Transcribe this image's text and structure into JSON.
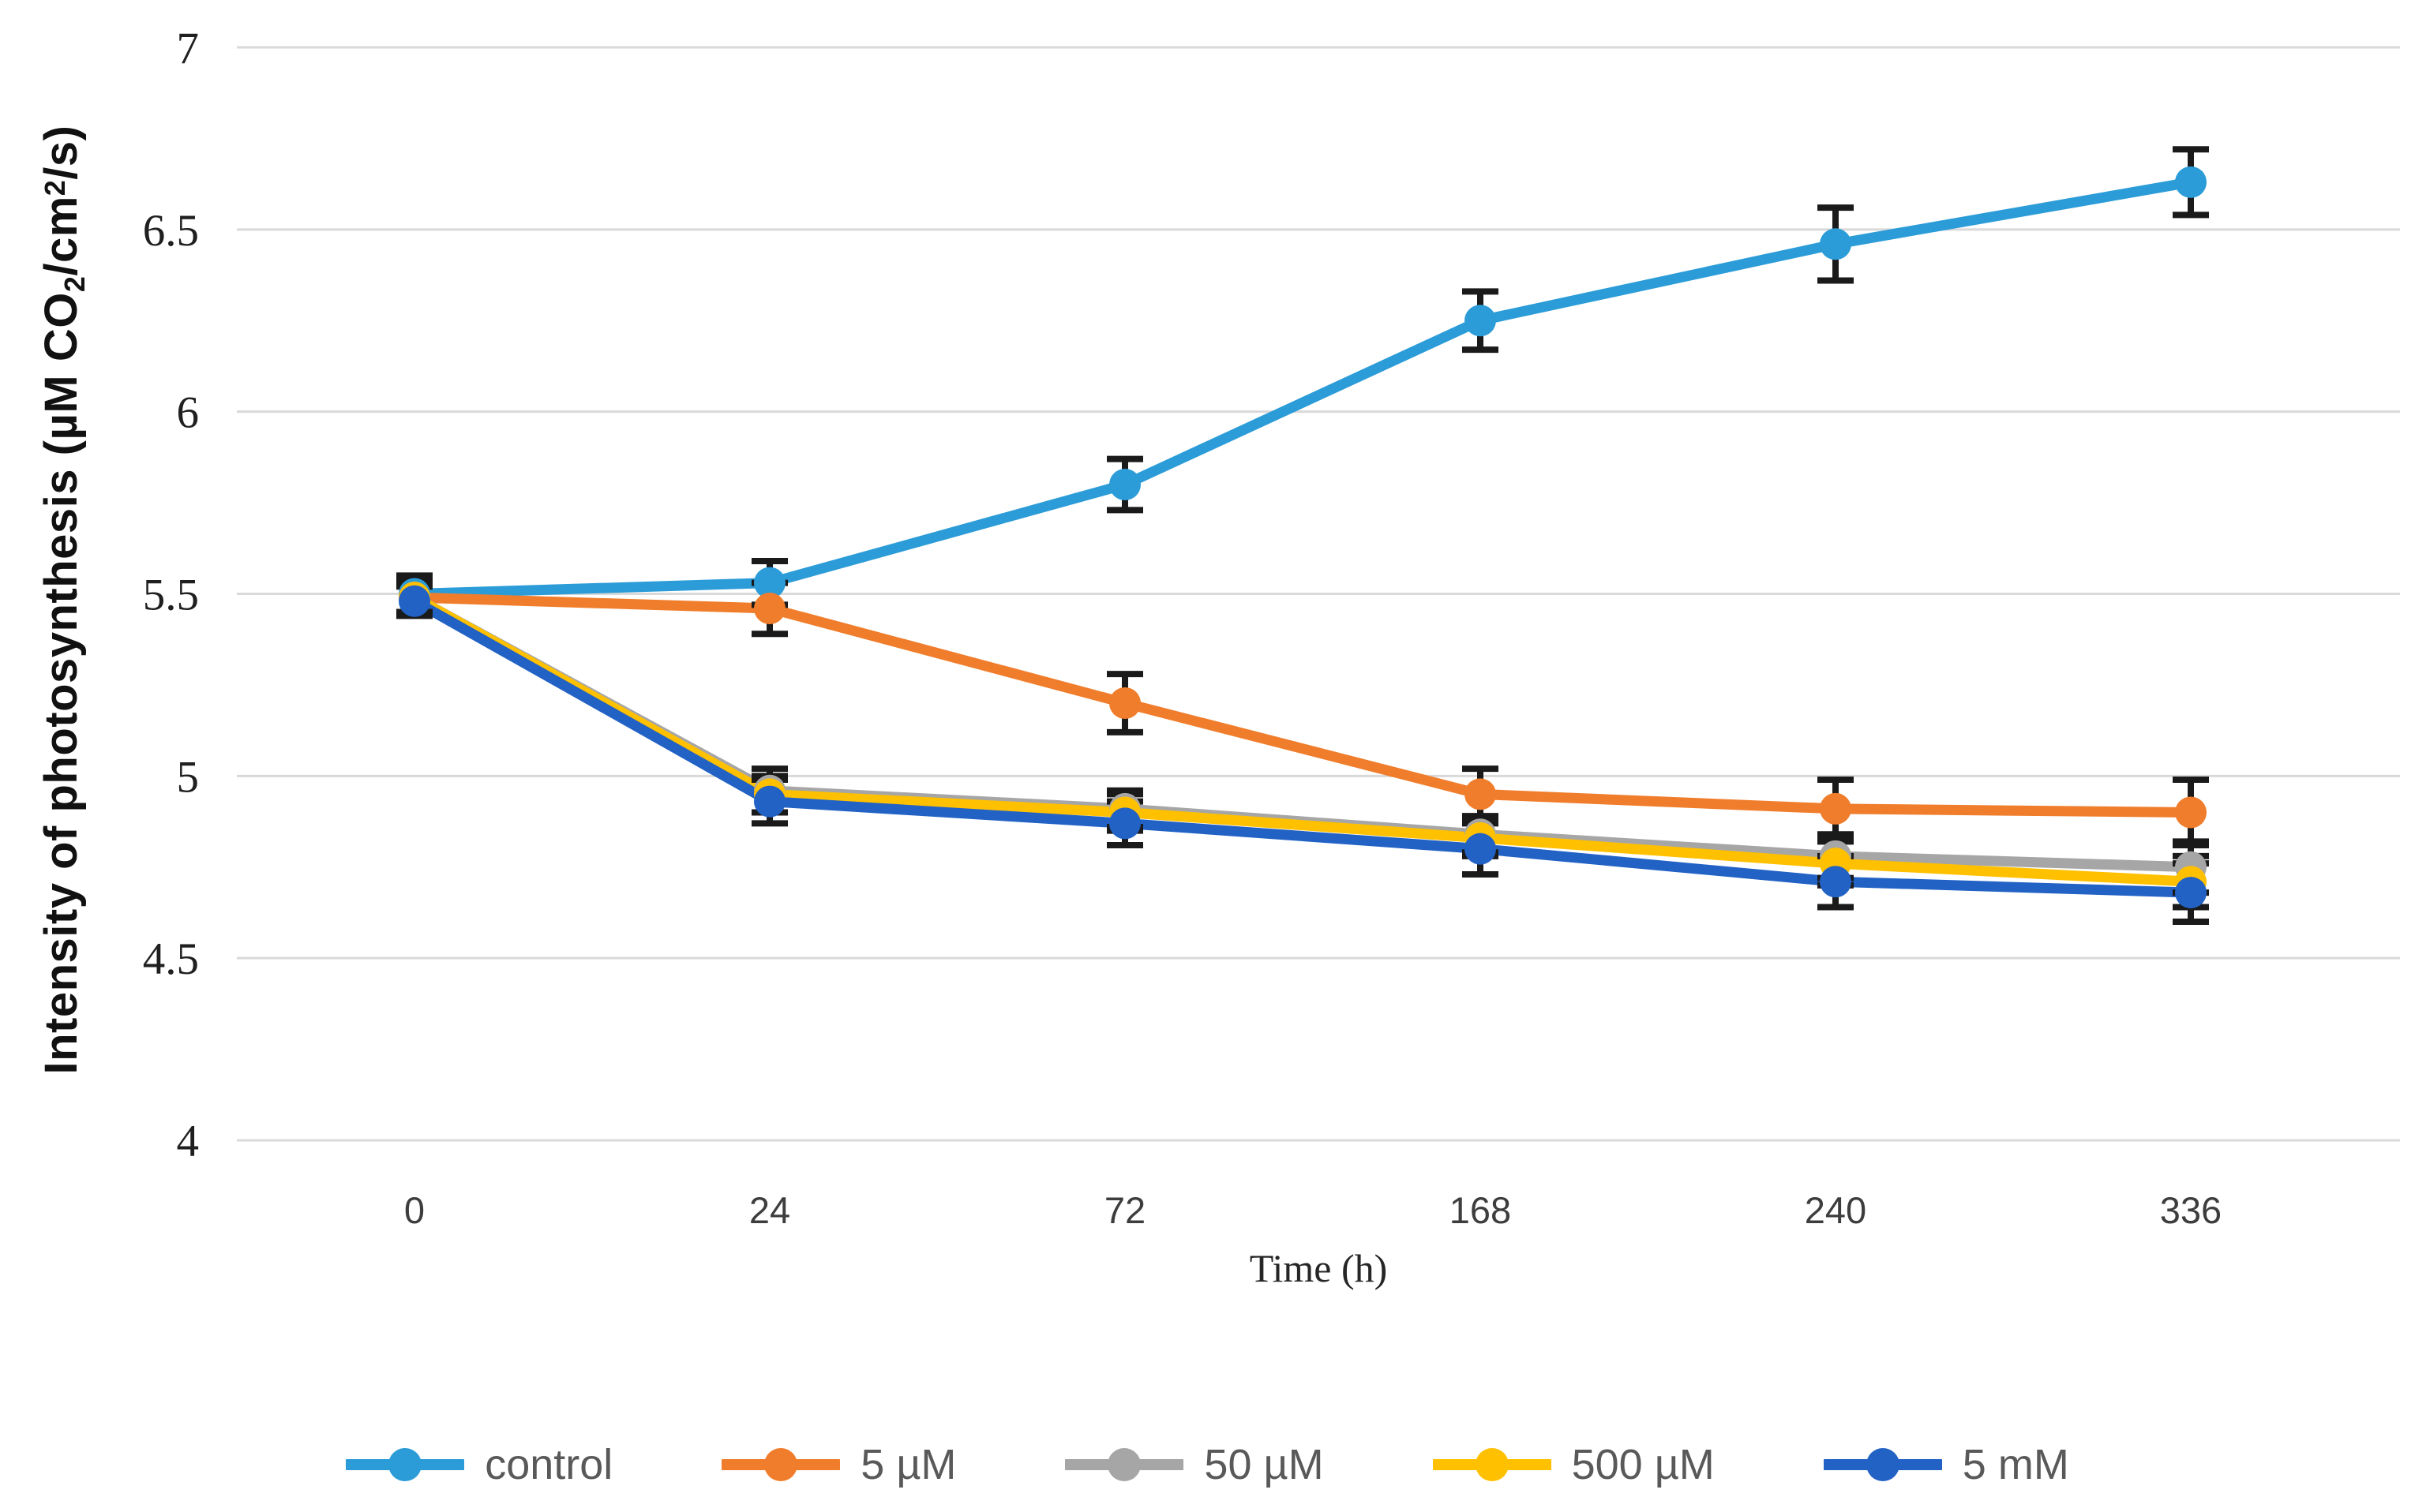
{
  "figure": {
    "background": "#FFFFFF"
  },
  "y_axis": {
    "title_prefix": "Intensity of photosynthesis (µM CO",
    "title_sub": "2",
    "title_mid": "/cm",
    "title_sup": "2",
    "title_suffix": "/s)"
  },
  "x_axis": {
    "title": "Time (h)"
  },
  "chart_data": {
    "type": "line",
    "title": "",
    "xlabel": "Time (h)",
    "ylabel": "Intensity of photosynthesis (µM CO2/cm2/s)",
    "categories": [
      "0",
      "24",
      "72",
      "168",
      "240",
      "336"
    ],
    "x_values_hours": [
      0,
      24,
      72,
      168,
      240,
      336
    ],
    "ylim": [
      4,
      7
    ],
    "ytick_step": 0.5,
    "yticks": [
      "7",
      "6.5",
      "6",
      "5.5",
      "5",
      "4.5",
      "4"
    ],
    "grid": "horizontal",
    "gridline_color": "#D9D9D9",
    "error_bar_color": "#1a1a1a",
    "tick_label_color_y": "#1f1f1f",
    "tick_label_color_x": "#3d3d3d",
    "legend_position": "bottom",
    "series": [
      {
        "name": "control",
        "color": "#2B9CD8",
        "values": [
          5.5,
          5.53,
          5.8,
          6.25,
          6.46,
          6.63
        ],
        "errors": [
          0.05,
          0.06,
          0.07,
          0.08,
          0.1,
          0.09
        ]
      },
      {
        "name": "5 µM",
        "color": "#F07D2B",
        "values": [
          5.49,
          5.46,
          5.2,
          4.95,
          4.91,
          4.9
        ],
        "errors": [
          0.05,
          0.07,
          0.08,
          0.07,
          0.08,
          0.09
        ]
      },
      {
        "name": "50 µM",
        "color": "#A6A6A6",
        "values": [
          5.49,
          4.96,
          4.91,
          4.84,
          4.78,
          4.75
        ],
        "errors": [
          0.04,
          0.06,
          0.05,
          0.05,
          0.06,
          0.07
        ]
      },
      {
        "name": "500 µM",
        "color": "#FFC000",
        "values": [
          5.49,
          4.95,
          4.9,
          4.83,
          4.76,
          4.71
        ],
        "errors": [
          0.04,
          0.05,
          0.05,
          0.05,
          0.06,
          0.07
        ]
      },
      {
        "name": "5 mM",
        "color": "#2262C5",
        "values": [
          5.48,
          4.93,
          4.87,
          4.8,
          4.71,
          4.68
        ],
        "errors": [
          0.04,
          0.06,
          0.06,
          0.07,
          0.07,
          0.08
        ]
      }
    ]
  }
}
